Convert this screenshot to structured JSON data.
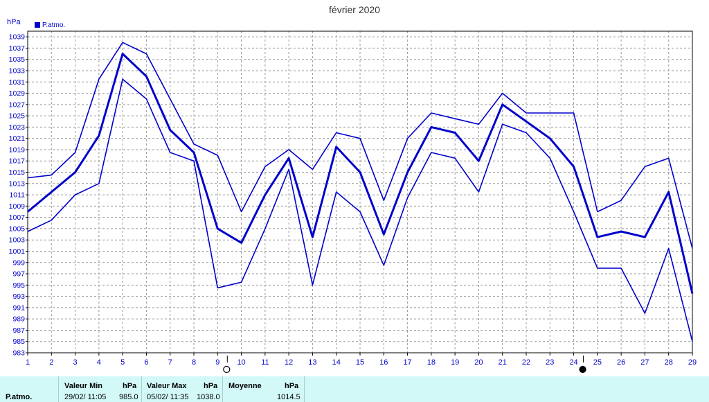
{
  "chart_data": {
    "type": "line",
    "title": "février 2020",
    "ylabel": "hPa",
    "ylim": [
      983,
      1040
    ],
    "yticks": [
      983,
      985,
      987,
      989,
      991,
      993,
      995,
      997,
      999,
      1001,
      1003,
      1005,
      1007,
      1009,
      1011,
      1013,
      1015,
      1017,
      1019,
      1021,
      1023,
      1025,
      1027,
      1029,
      1031,
      1033,
      1035,
      1037,
      1039
    ],
    "x": [
      1,
      2,
      3,
      4,
      5,
      6,
      7,
      8,
      9,
      10,
      11,
      12,
      13,
      14,
      15,
      16,
      17,
      18,
      19,
      20,
      21,
      22,
      23,
      24,
      25,
      26,
      27,
      28,
      29
    ],
    "grid": true,
    "legend": {
      "label": "P.atmo.",
      "placement": "top-left"
    },
    "series": [
      {
        "name": "P.atmo.",
        "role": "max",
        "values": [
          1014,
          1014.5,
          1018.5,
          1031.5,
          1038,
          1036,
          1028,
          1020,
          1018,
          1008,
          1016,
          1019,
          1015.5,
          1022,
          1021,
          1010,
          1021,
          1025.5,
          1024.5,
          1023.5,
          1029,
          1025.5,
          1025.5,
          1025.5,
          1008,
          1010,
          1016,
          1017.5,
          1001.5
        ]
      },
      {
        "name": "P.atmo.",
        "role": "mean",
        "values": [
          1008,
          1011.5,
          1015,
          1021.5,
          1036,
          1032,
          1022.5,
          1018.5,
          1005,
          1002.5,
          1011,
          1017.5,
          1003.5,
          1019.5,
          1015,
          1004,
          1015,
          1023,
          1022,
          1017,
          1027,
          1024,
          1021,
          1016,
          1003.5,
          1004.5,
          1003.5,
          1011.5,
          993.5
        ]
      },
      {
        "name": "P.atmo.",
        "role": "min",
        "values": [
          1004.5,
          1006.5,
          1011,
          1013,
          1031.5,
          1028,
          1018.5,
          1017,
          994.5,
          995.5,
          1005,
          1015.5,
          995,
          1011.5,
          1008,
          998.5,
          1010.5,
          1018.5,
          1017.5,
          1011.5,
          1023.5,
          1022,
          1017.5,
          1008,
          998,
          998,
          990,
          1001.5,
          985
        ]
      }
    ],
    "moon_phases": [
      {
        "day": 9,
        "phase": "full"
      },
      {
        "day": 24,
        "phase": "new"
      }
    ]
  },
  "stats": {
    "row_label": "P.atmo.",
    "min": {
      "header": "Valeur Min",
      "unit": "hPa",
      "date": "29/02/  11:05",
      "value": "985.0"
    },
    "max": {
      "header": "Valeur Max",
      "unit": "hPa",
      "date": "05/02/  11:35",
      "value": "1038.0"
    },
    "mean": {
      "header": "Moyenne",
      "unit": "hPa",
      "value": "1014.5"
    }
  },
  "colors": {
    "series": "#0000cc",
    "grid": "#9a9a9a",
    "stats_bg": "#d2f8f8"
  }
}
